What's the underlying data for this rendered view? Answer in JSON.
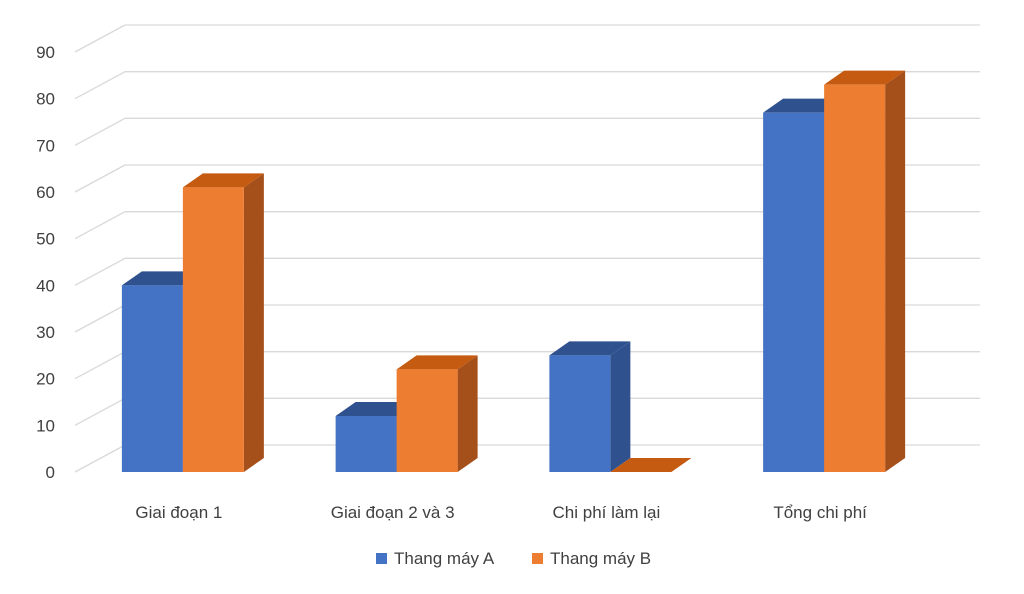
{
  "chart_data": {
    "type": "bar",
    "style": "3d-clustered-column",
    "categories": [
      "Giai đoạn 1",
      "Giai đoạn 2 và 3",
      "Chi phí làm lại",
      "Tổng chi phí"
    ],
    "series": [
      {
        "name": "Thang máy A",
        "values": [
          40,
          12,
          25,
          77
        ],
        "color": "#4472C4",
        "top_color": "#2F528F",
        "side_color": "#2F528F"
      },
      {
        "name": "Thang máy B",
        "values": [
          61,
          22,
          0,
          83
        ],
        "color": "#ED7D31",
        "top_color": "#C55A11",
        "side_color": "#A5501B"
      }
    ],
    "ylim": [
      0,
      90
    ],
    "yticks": [
      "0",
      "10",
      "20",
      "30",
      "40",
      "50",
      "60",
      "70",
      "80",
      "90"
    ],
    "grid": true,
    "legend": "bottom",
    "title": "",
    "xlabel": "",
    "ylabel": ""
  }
}
